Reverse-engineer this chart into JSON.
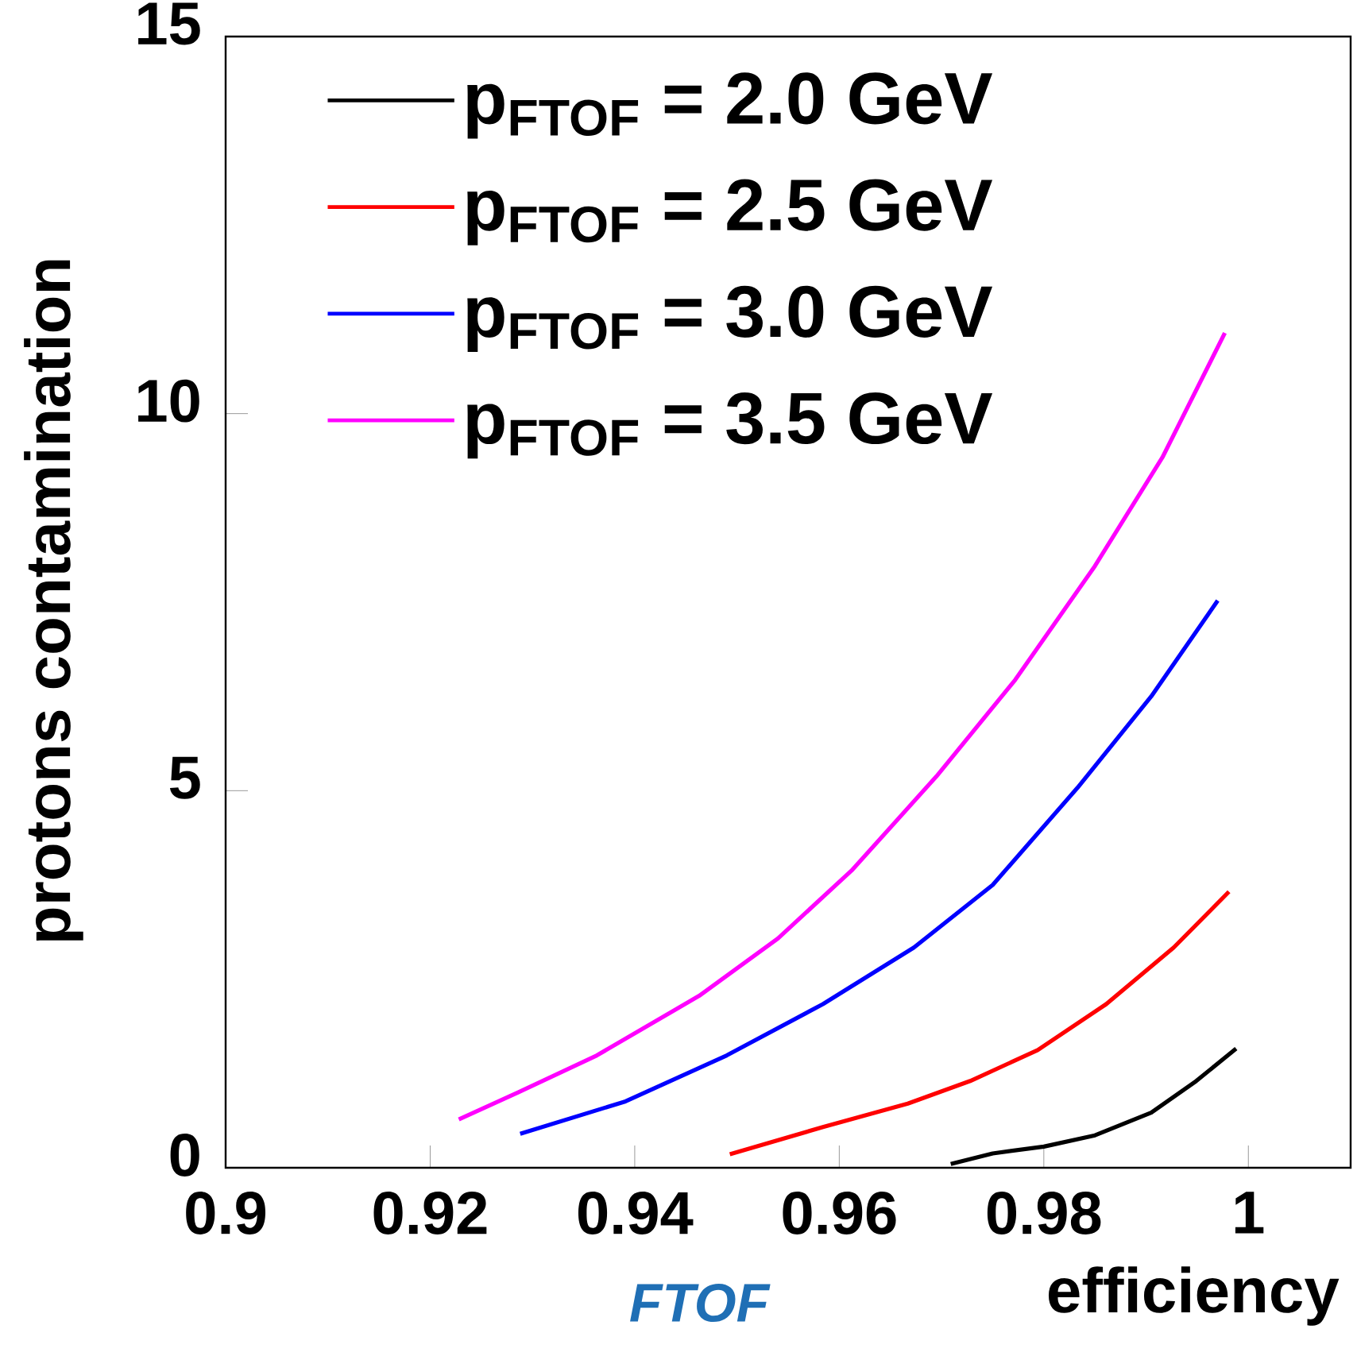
{
  "chart_data": {
    "type": "line",
    "xlabel": "efficiency",
    "ylabel": "protons contamination",
    "annotations": [
      "FTOF"
    ],
    "xlim": [
      0.9,
      1.01
    ],
    "ylim": [
      0,
      15
    ],
    "xticks": [
      0.9,
      0.92,
      0.94,
      0.96,
      0.98,
      1
    ],
    "yticks": [
      0,
      5,
      10,
      15
    ],
    "legend": "top left",
    "grid": false,
    "marker": "none",
    "line_style": "solid",
    "series": [
      {
        "name": "p$_{FTOF}$ = 2.0 GeV",
        "color": "#000000",
        "x": [
          0.9709,
          0.975,
          0.98,
          0.985,
          0.9905,
          0.9949,
          0.9988
        ],
        "values": [
          0.05,
          0.19,
          0.28,
          0.43,
          0.73,
          1.15,
          1.58
        ]
      },
      {
        "name": "p$_{FTOF}$ = 2.5 GeV",
        "color": "#ff0000",
        "x": [
          0.9493,
          0.9584,
          0.9667,
          0.9728,
          0.9794,
          0.9861,
          0.9927,
          0.9981
        ],
        "values": [
          0.18,
          0.54,
          0.85,
          1.15,
          1.56,
          2.17,
          2.92,
          3.66
        ]
      },
      {
        "name": "p$_{FTOF}$ = 3.0 GeV",
        "color": "#0000ff",
        "x": [
          0.9288,
          0.9391,
          0.949,
          0.9584,
          0.9673,
          0.975,
          0.9833,
          0.9905,
          0.997
        ],
        "values": [
          0.45,
          0.88,
          1.49,
          2.17,
          2.92,
          3.75,
          5.04,
          6.25,
          7.52
        ]
      },
      {
        "name": "p$_{FTOF}$ = 3.5 GeV",
        "color": "#ff00ff",
        "x": [
          0.9228,
          0.9286,
          0.9363,
          0.9463,
          0.954,
          0.9612,
          0.9695,
          0.9772,
          0.985,
          0.9916,
          0.9977
        ],
        "values": [
          0.64,
          1.0,
          1.49,
          2.28,
          3.04,
          3.94,
          5.19,
          6.47,
          7.98,
          9.42,
          11.07
        ]
      }
    ]
  }
}
